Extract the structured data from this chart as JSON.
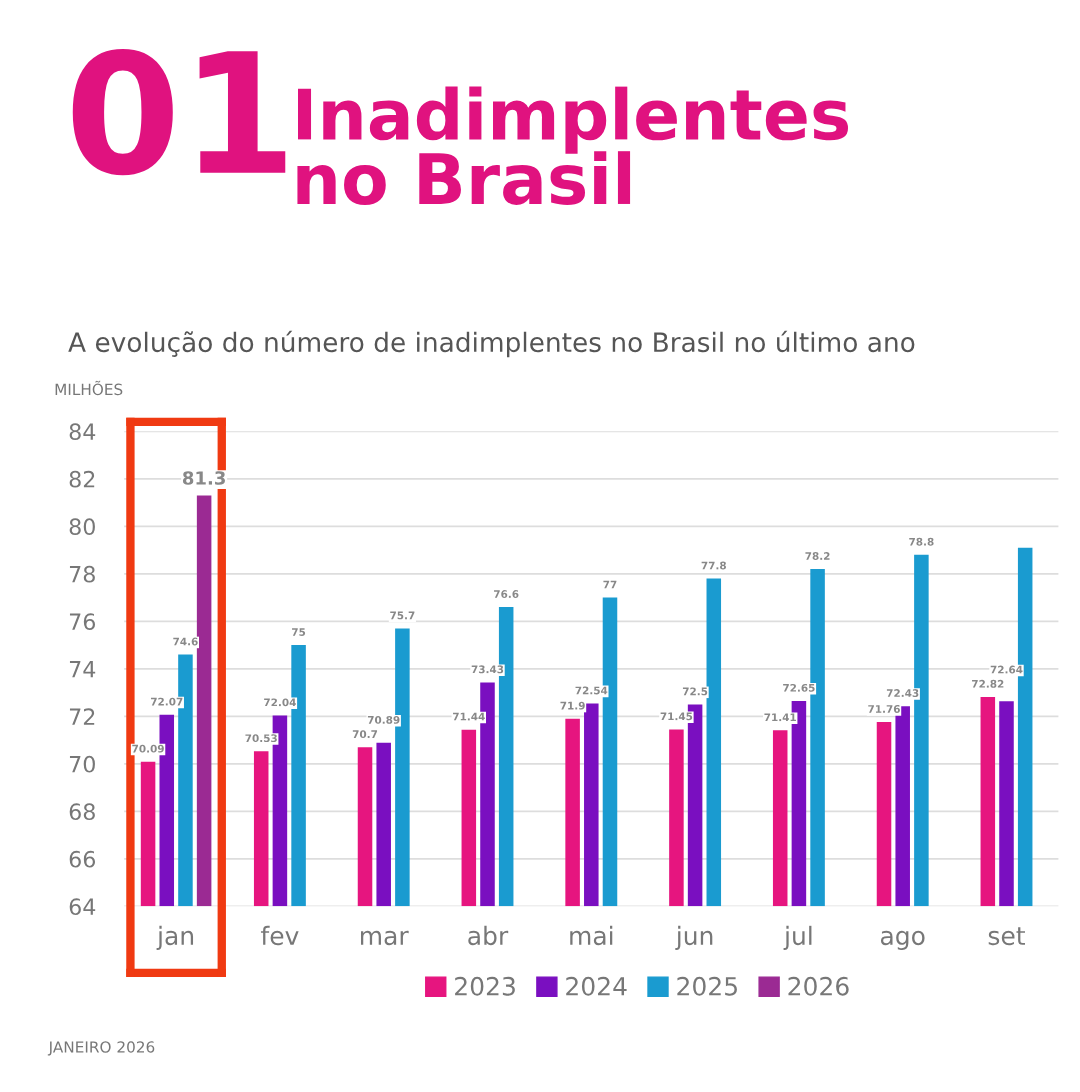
{
  "chart_data": {
    "type": "bar",
    "title": "01",
    "subtitle": "Inadimplentes\nno Brasil",
    "annotations": [
      "A evolução do número de inadimplentes no Brasil no último ano",
      "JANEIRO 2026"
    ],
    "ylabel": "MILHÕES",
    "categories": [
      "jan",
      "fev",
      "mar",
      "abr",
      "mai",
      "jun",
      "jul",
      "ago",
      "set"
    ],
    "series": [
      {
        "name": "2023",
        "color": "#e6157f",
        "values": [
          70.09,
          70.53,
          70.7,
          71.44,
          71.9,
          71.45,
          71.41,
          71.76,
          72.82
        ],
        "value_labels": [
          "70.09",
          "70.53",
          "70.7",
          "71.44",
          "71.9",
          "71.45",
          "71.41",
          "71.76",
          "72.82"
        ]
      },
      {
        "name": "2024",
        "color": "#7a0fc0",
        "values": [
          72.07,
          72.04,
          70.89,
          73.43,
          72.54,
          72.5,
          72.65,
          72.43,
          72.64
        ],
        "value_labels": [
          "72.07",
          "72.04",
          "70.89",
          "73.43",
          "72.54",
          "72.5",
          "72.65",
          "72.43",
          "72.64"
        ]
      },
      {
        "name": "2025",
        "color": "#1a9bd0",
        "values": [
          74.6,
          75,
          75.7,
          76.6,
          77,
          77.8,
          78.2,
          78.8,
          79.1
        ],
        "value_labels": [
          "74.6",
          "75",
          "75.7",
          "76.6",
          "77",
          "77.8",
          "78.2",
          "78.8",
          null
        ]
      },
      {
        "name": "2026",
        "color": "#9b2a93",
        "values": [
          81.3,
          null,
          null,
          null,
          null,
          null,
          null,
          null,
          null
        ],
        "value_labels": [
          "81.3",
          null,
          null,
          null,
          null,
          null,
          null,
          null,
          null
        ]
      }
    ],
    "ylim": [
      64,
      84
    ],
    "yticks": [
      64,
      66,
      68,
      70,
      72,
      74,
      76,
      78,
      80,
      82,
      84
    ],
    "grid": "y",
    "legend": "bottom"
  }
}
